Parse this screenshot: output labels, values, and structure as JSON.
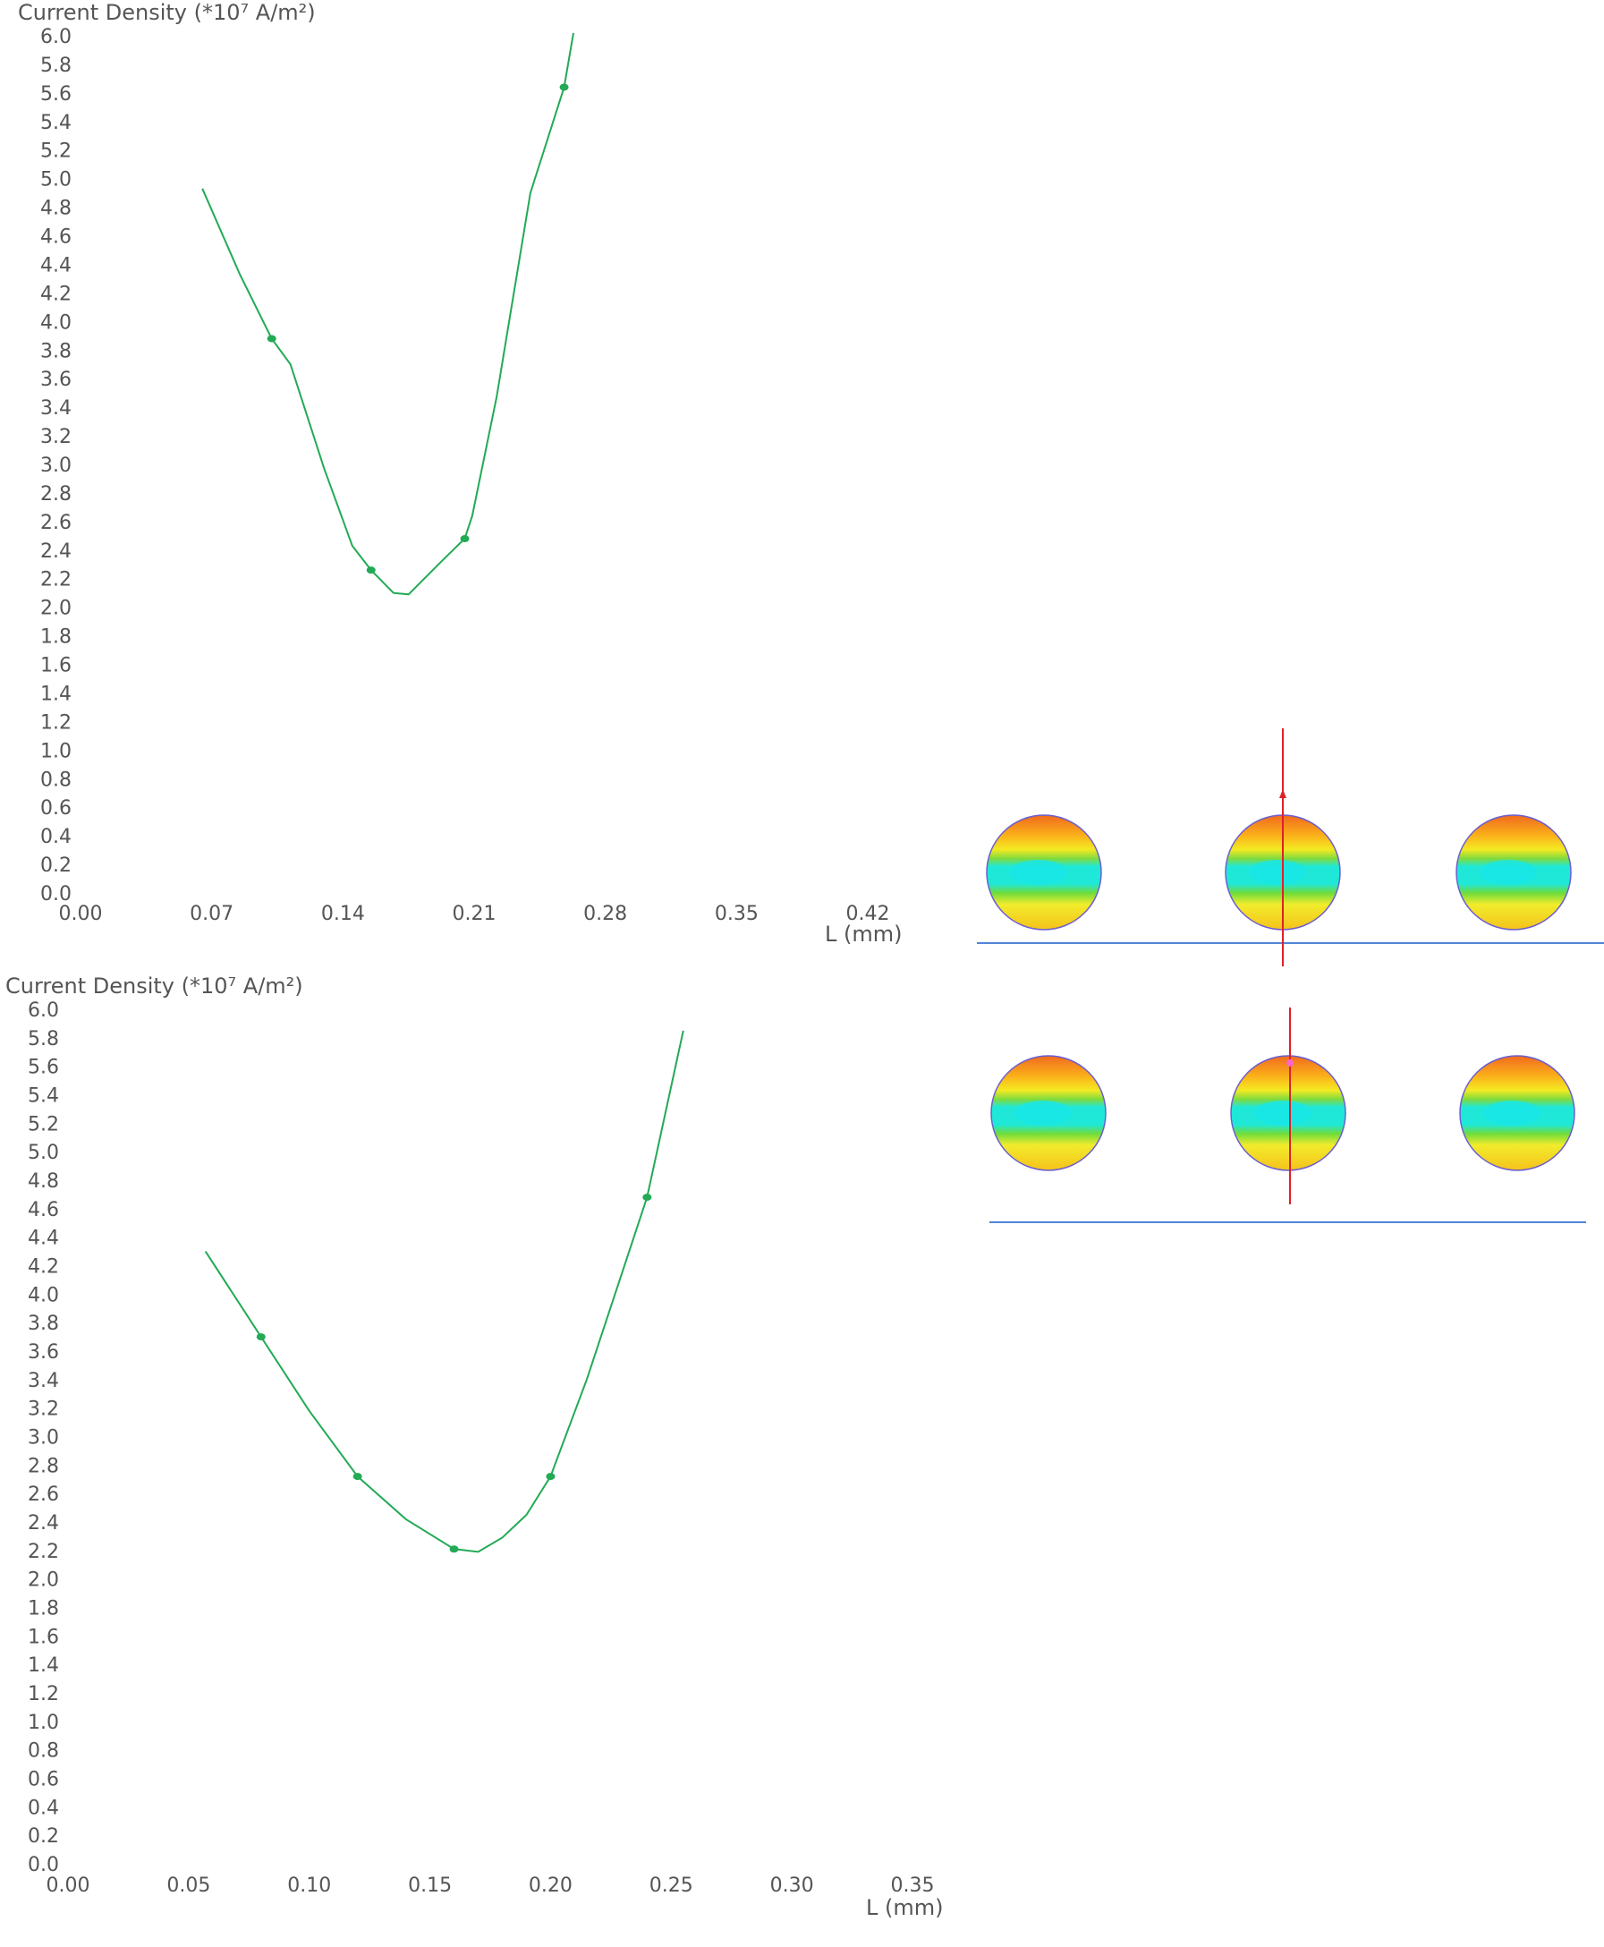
{
  "charts": [
    {
      "title": "Current Density (*10⁷ A/m²)",
      "xlabel": "L (mm)",
      "probe_marker": "arrow"
    },
    {
      "title": "Current Density (*10⁷ A/m²)",
      "xlabel": "L (mm)",
      "probe_marker": "dot"
    }
  ],
  "colors": {
    "line": "#22aa55",
    "point": "#22aa55",
    "axis_text": "#555555",
    "probe_line": "#e0202a",
    "substrate_line": "#4f86d6",
    "ball_edge": "#6b5fd0"
  },
  "chart_data": [
    {
      "type": "line",
      "title": "Current Density (*10⁷ A/m²)",
      "xlabel": "L (mm)",
      "ylabel": "",
      "xlim": [
        0,
        0.42
      ],
      "ylim": [
        0,
        6.0
      ],
      "xticks": [
        "0.00",
        "0.07",
        "0.14",
        "0.21",
        "0.28",
        "0.35",
        "0.42"
      ],
      "yticks": [
        "0.0",
        "0.2",
        "0.4",
        "0.6",
        "0.8",
        "1.0",
        "1.2",
        "1.4",
        "1.6",
        "1.8",
        "2.0",
        "2.2",
        "2.4",
        "2.6",
        "2.8",
        "3.0",
        "3.2",
        "3.4",
        "3.6",
        "3.8",
        "4.0",
        "4.2",
        "4.4",
        "4.6",
        "4.8",
        "5.0",
        "5.2",
        "5.4",
        "5.6",
        "5.8",
        "6.0"
      ],
      "grid": false,
      "series": [
        {
          "x": [
            0.065,
            0.085,
            0.102,
            0.112,
            0.13,
            0.145,
            0.155,
            0.167,
            0.175,
            0.194,
            0.205,
            0.209,
            0.222,
            0.24,
            0.258,
            0.263
          ],
          "y": [
            4.93,
            4.33,
            3.88,
            3.7,
            2.97,
            2.43,
            2.26,
            2.1,
            2.09,
            2.34,
            2.48,
            2.64,
            3.47,
            4.9,
            5.64,
            6.02
          ]
        }
      ],
      "markers": {
        "x": [
          0.102,
          0.155,
          0.205,
          0.258
        ],
        "y": [
          3.88,
          2.26,
          2.48,
          5.64
        ]
      }
    },
    {
      "type": "line",
      "title": "Current Density (*10⁷ A/m²)",
      "xlabel": "L (mm)",
      "ylabel": "",
      "xlim": [
        0,
        0.35
      ],
      "ylim": [
        0,
        6.0
      ],
      "xticks": [
        "0.00",
        "0.05",
        "0.10",
        "0.15",
        "0.20",
        "0.25",
        "0.30",
        "0.35"
      ],
      "yticks": [
        "0.0",
        "0.2",
        "0.4",
        "0.6",
        "0.8",
        "1.0",
        "1.2",
        "1.4",
        "1.6",
        "1.8",
        "2.0",
        "2.2",
        "2.4",
        "2.6",
        "2.8",
        "3.0",
        "3.2",
        "3.4",
        "3.6",
        "3.8",
        "4.0",
        "4.2",
        "4.4",
        "4.6",
        "4.8",
        "5.0",
        "5.2",
        "5.4",
        "5.6",
        "5.8",
        "6.0"
      ],
      "grid": false,
      "series": [
        {
          "x": [
            0.057,
            0.08,
            0.1,
            0.12,
            0.14,
            0.16,
            0.17,
            0.18,
            0.19,
            0.2,
            0.215,
            0.24,
            0.255
          ],
          "y": [
            4.3,
            3.7,
            3.18,
            2.72,
            2.42,
            2.21,
            2.19,
            2.29,
            2.45,
            2.72,
            3.4,
            4.68,
            5.85
          ]
        }
      ],
      "markers": {
        "x": [
          0.08,
          0.12,
          0.16,
          0.2,
          0.24
        ],
        "y": [
          3.7,
          2.72,
          2.21,
          2.72,
          4.68
        ]
      }
    }
  ]
}
